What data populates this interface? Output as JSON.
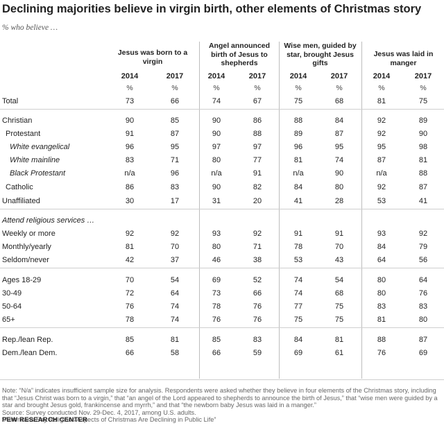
{
  "title": "Declining majorities believe in virgin birth, other elements of Christmas story",
  "subtitle": "% who believe …",
  "columns": [
    {
      "label": "Jesus was born to a virgin"
    },
    {
      "label": "Angel announced birth of Jesus to shepherds"
    },
    {
      "label": "Wise men, guided by star, brought Jesus gifts"
    },
    {
      "label": "Jesus was laid in manger"
    }
  ],
  "year_labels": [
    "2014",
    "2017"
  ],
  "pct_symbol": "%",
  "rows": [
    {
      "label": "Total",
      "style": "flat",
      "values": [
        "73",
        "66",
        "74",
        "67",
        "75",
        "68",
        "81",
        "75"
      ]
    },
    {
      "label": "Christian",
      "style": "flat",
      "values": [
        "90",
        "85",
        "90",
        "86",
        "88",
        "84",
        "92",
        "89"
      ]
    },
    {
      "label": "Protestant",
      "style": "indent1",
      "values": [
        "91",
        "87",
        "90",
        "88",
        "89",
        "87",
        "92",
        "90"
      ]
    },
    {
      "label": "White evangelical",
      "style": "indent2",
      "values": [
        "96",
        "95",
        "97",
        "97",
        "96",
        "95",
        "95",
        "98"
      ]
    },
    {
      "label": "White mainline",
      "style": "indent2",
      "values": [
        "83",
        "71",
        "80",
        "77",
        "81",
        "74",
        "87",
        "81"
      ]
    },
    {
      "label": "Black Protestant",
      "style": "indent2",
      "values": [
        "n/a",
        "96",
        "n/a",
        "91",
        "n/a",
        "90",
        "n/a",
        "88"
      ]
    },
    {
      "label": "Catholic",
      "style": "indent1",
      "values": [
        "86",
        "83",
        "90",
        "82",
        "84",
        "80",
        "92",
        "87"
      ]
    },
    {
      "label": "Unaffiliated",
      "style": "flat",
      "values": [
        "30",
        "17",
        "31",
        "20",
        "41",
        "28",
        "53",
        "41"
      ]
    },
    {
      "label": "Attend religious services …",
      "style": "head",
      "values": []
    },
    {
      "label": "Weekly or more",
      "style": "flat",
      "values": [
        "92",
        "92",
        "93",
        "92",
        "91",
        "91",
        "93",
        "92"
      ]
    },
    {
      "label": "Monthly/yearly",
      "style": "flat",
      "values": [
        "81",
        "70",
        "80",
        "71",
        "78",
        "70",
        "84",
        "79"
      ]
    },
    {
      "label": "Seldom/never",
      "style": "flat",
      "values": [
        "42",
        "37",
        "46",
        "38",
        "53",
        "43",
        "64",
        "56"
      ]
    },
    {
      "label": "Ages 18-29",
      "style": "flat",
      "values": [
        "70",
        "54",
        "69",
        "52",
        "74",
        "54",
        "80",
        "64"
      ]
    },
    {
      "label": "30-49",
      "style": "flat",
      "values": [
        "72",
        "64",
        "73",
        "66",
        "74",
        "68",
        "80",
        "76"
      ]
    },
    {
      "label": "50-64",
      "style": "flat",
      "values": [
        "76",
        "74",
        "78",
        "76",
        "77",
        "75",
        "83",
        "83"
      ]
    },
    {
      "label": "65+",
      "style": "flat",
      "values": [
        "78",
        "74",
        "76",
        "76",
        "75",
        "75",
        "81",
        "80"
      ]
    },
    {
      "label": "Rep./lean Rep.",
      "style": "flat",
      "values": [
        "85",
        "81",
        "85",
        "83",
        "84",
        "81",
        "88",
        "87"
      ]
    },
    {
      "label": "Dem./lean Dem.",
      "style": "flat",
      "values": [
        "66",
        "58",
        "66",
        "59",
        "69",
        "61",
        "76",
        "69"
      ]
    }
  ],
  "notes": [
    "Note: “N/a” indicates insufficient sample size for analysis. Respondents were asked whether they believe in four elements of the Christmas story, including that “Jesus Christ was born to a virgin,” that “an angel of the Lord appeared to shepherds to announce the birth of Jesus,” that “wise men were guided by a star and brought Jesus gold, frankincense and myrrh,” and that “the newborn baby Jesus was laid in a manger.”",
    "Source: Survey conducted Nov. 29-Dec. 4, 2017, among U.S. adults.",
    "“Americans Say Religious Aspects of Christmas Are Declining in Public Life”"
  ],
  "brand": "PEW RESEARCH CENTER",
  "chart_data": {
    "type": "table",
    "title": "Declining majorities believe in virgin birth, other elements of Christmas story",
    "subtitle": "% who believe …",
    "column_groups": [
      "Jesus was born to a virgin",
      "Angel announced birth of Jesus to shepherds",
      "Wise men, guided by star, brought Jesus gifts",
      "Jesus was laid in manger"
    ],
    "years": [
      "2014",
      "2017"
    ],
    "unit": "%"
  }
}
